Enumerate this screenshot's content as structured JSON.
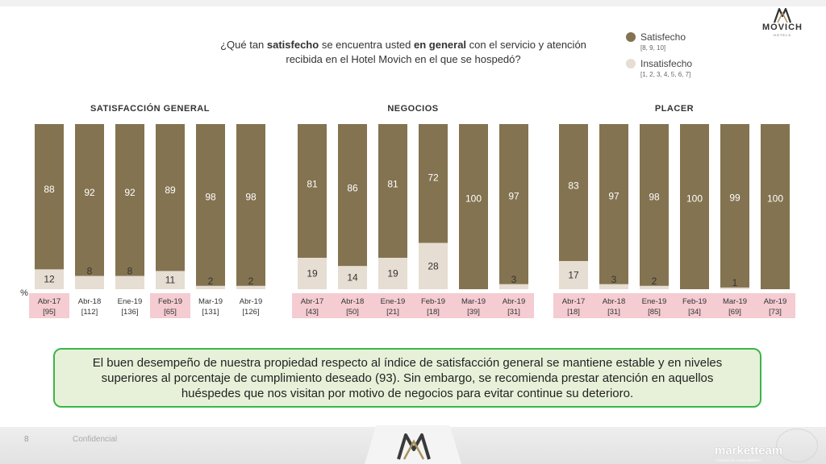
{
  "question": {
    "part1": "¿Qué tan ",
    "bold1": "satisfecho",
    "part2": " se encuentra usted ",
    "bold2": "en general",
    "part3": " con el servicio y atención recibida en el Hotel Movich en el que se hospedó?"
  },
  "legend": {
    "satisfied": {
      "label": "Satisfecho",
      "sub": "[8, 9, 10]"
    },
    "unsatisfied": {
      "label": "Insatisfecho",
      "sub": "[1, 2, 3, 4, 5, 6, 7]"
    }
  },
  "logo": {
    "name": "MOVICH",
    "sub": "HOTELS"
  },
  "colors": {
    "satisfied": "#837350",
    "unsatisfied": "#e6ddd3",
    "highlight": "#f4ccd1",
    "summary_border": "#3bb54a",
    "summary_fill": "#e7f1d9"
  },
  "chart_data": [
    {
      "type": "bar",
      "stacked": true,
      "title": "SATISFACCIÓN GENERAL",
      "unit_label": "%",
      "categories": [
        "Abr-17",
        "Abr-18",
        "Ene-19",
        "Feb-19",
        "Mar-19",
        "Abr-19"
      ],
      "bases": [
        "[95]",
        "[112]",
        "[136]",
        "[65]",
        "[131]",
        "[126]"
      ],
      "highlighted": [
        true,
        false,
        false,
        true,
        false,
        false
      ],
      "ylim": [
        0,
        100
      ],
      "series": [
        {
          "name": "Satisfecho",
          "values": [
            88,
            92,
            92,
            89,
            98,
            98
          ]
        },
        {
          "name": "Insatisfecho",
          "values": [
            12,
            8,
            8,
            11,
            2,
            2
          ]
        }
      ]
    },
    {
      "type": "bar",
      "stacked": true,
      "title": "NEGOCIOS",
      "categories": [
        "Abr-17",
        "Abr-18",
        "Ene-19",
        "Feb-19",
        "Mar-19",
        "Abr-19"
      ],
      "bases": [
        "[43]",
        "[50]",
        "[21]",
        "[18]",
        "[39]",
        "[31]"
      ],
      "highlighted": [
        true,
        true,
        true,
        true,
        true,
        true
      ],
      "ylim": [
        0,
        100
      ],
      "series": [
        {
          "name": "Satisfecho",
          "values": [
            81,
            86,
            81,
            72,
            100,
            97
          ]
        },
        {
          "name": "Insatisfecho",
          "values": [
            19,
            14,
            19,
            28,
            null,
            3
          ]
        }
      ]
    },
    {
      "type": "bar",
      "stacked": true,
      "title": "PLACER",
      "categories": [
        "Abr-17",
        "Abr-18",
        "Ene-19",
        "Feb-19",
        "Mar-19",
        "Abr-19"
      ],
      "bases": [
        "[18]",
        "[31]",
        "[85]",
        "[34]",
        "[69]",
        "[73]"
      ],
      "highlighted": [
        true,
        true,
        true,
        true,
        true,
        true
      ],
      "ylim": [
        0,
        100
      ],
      "series": [
        {
          "name": "Satisfecho",
          "values": [
            83,
            97,
            98,
            100,
            99,
            100
          ]
        },
        {
          "name": "Insatisfecho",
          "values": [
            17,
            3,
            2,
            null,
            1,
            null
          ]
        }
      ]
    }
  ],
  "summary": "El buen desempeño de nuestra propiedad respecto al índice de satisfacción general se mantiene estable y en niveles superiores al porcentaje de cumplimiento deseado (93). Sin embargo, se recomienda prestar atención en aquellos huéspedes que nos visitan por motivo de negocios para evitar continue su deterioro.",
  "footer": {
    "page_number": "8",
    "tag": "Confidencial",
    "brand": "marketteam",
    "brand_sub": "CÓDIGO DE CONOCIMIENTO"
  }
}
